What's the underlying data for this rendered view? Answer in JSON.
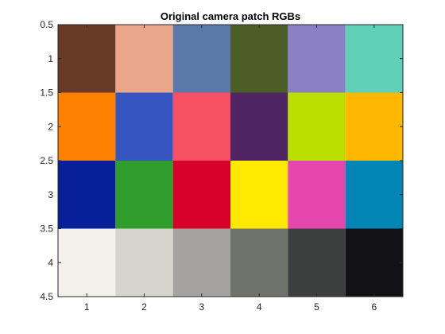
{
  "chart_data": {
    "type": "heatmap",
    "title": "Original camera patch RGBs",
    "xlabel": "",
    "ylabel": "",
    "x_ticks": [
      "1",
      "2",
      "3",
      "4",
      "5",
      "6"
    ],
    "y_ticks": [
      "0.5",
      "1",
      "1.5",
      "2",
      "2.5",
      "3",
      "3.5",
      "4",
      "4.5"
    ],
    "xlim": [
      0.5,
      6.5
    ],
    "ylim": [
      4.5,
      0.5
    ],
    "y_reversed": true,
    "grid": false,
    "rows": 4,
    "cols": 6,
    "cells": [
      [
        "#693a26",
        "#eaa68a",
        "#5a79aa",
        "#4a5e26",
        "#8a80c3",
        "#60d0b6"
      ],
      [
        "#fe8100",
        "#3655c0",
        "#f65062",
        "#4f2463",
        "#bbe000",
        "#ffb700"
      ],
      [
        "#07209a",
        "#309e2c",
        "#d7002b",
        "#ffe900",
        "#e446ae",
        "#0185b4"
      ],
      [
        "#f2f2eb",
        "#d5d5cd",
        "#a4a3a0",
        "#70726c",
        "#3d3e3e",
        "#121214"
      ]
    ]
  }
}
